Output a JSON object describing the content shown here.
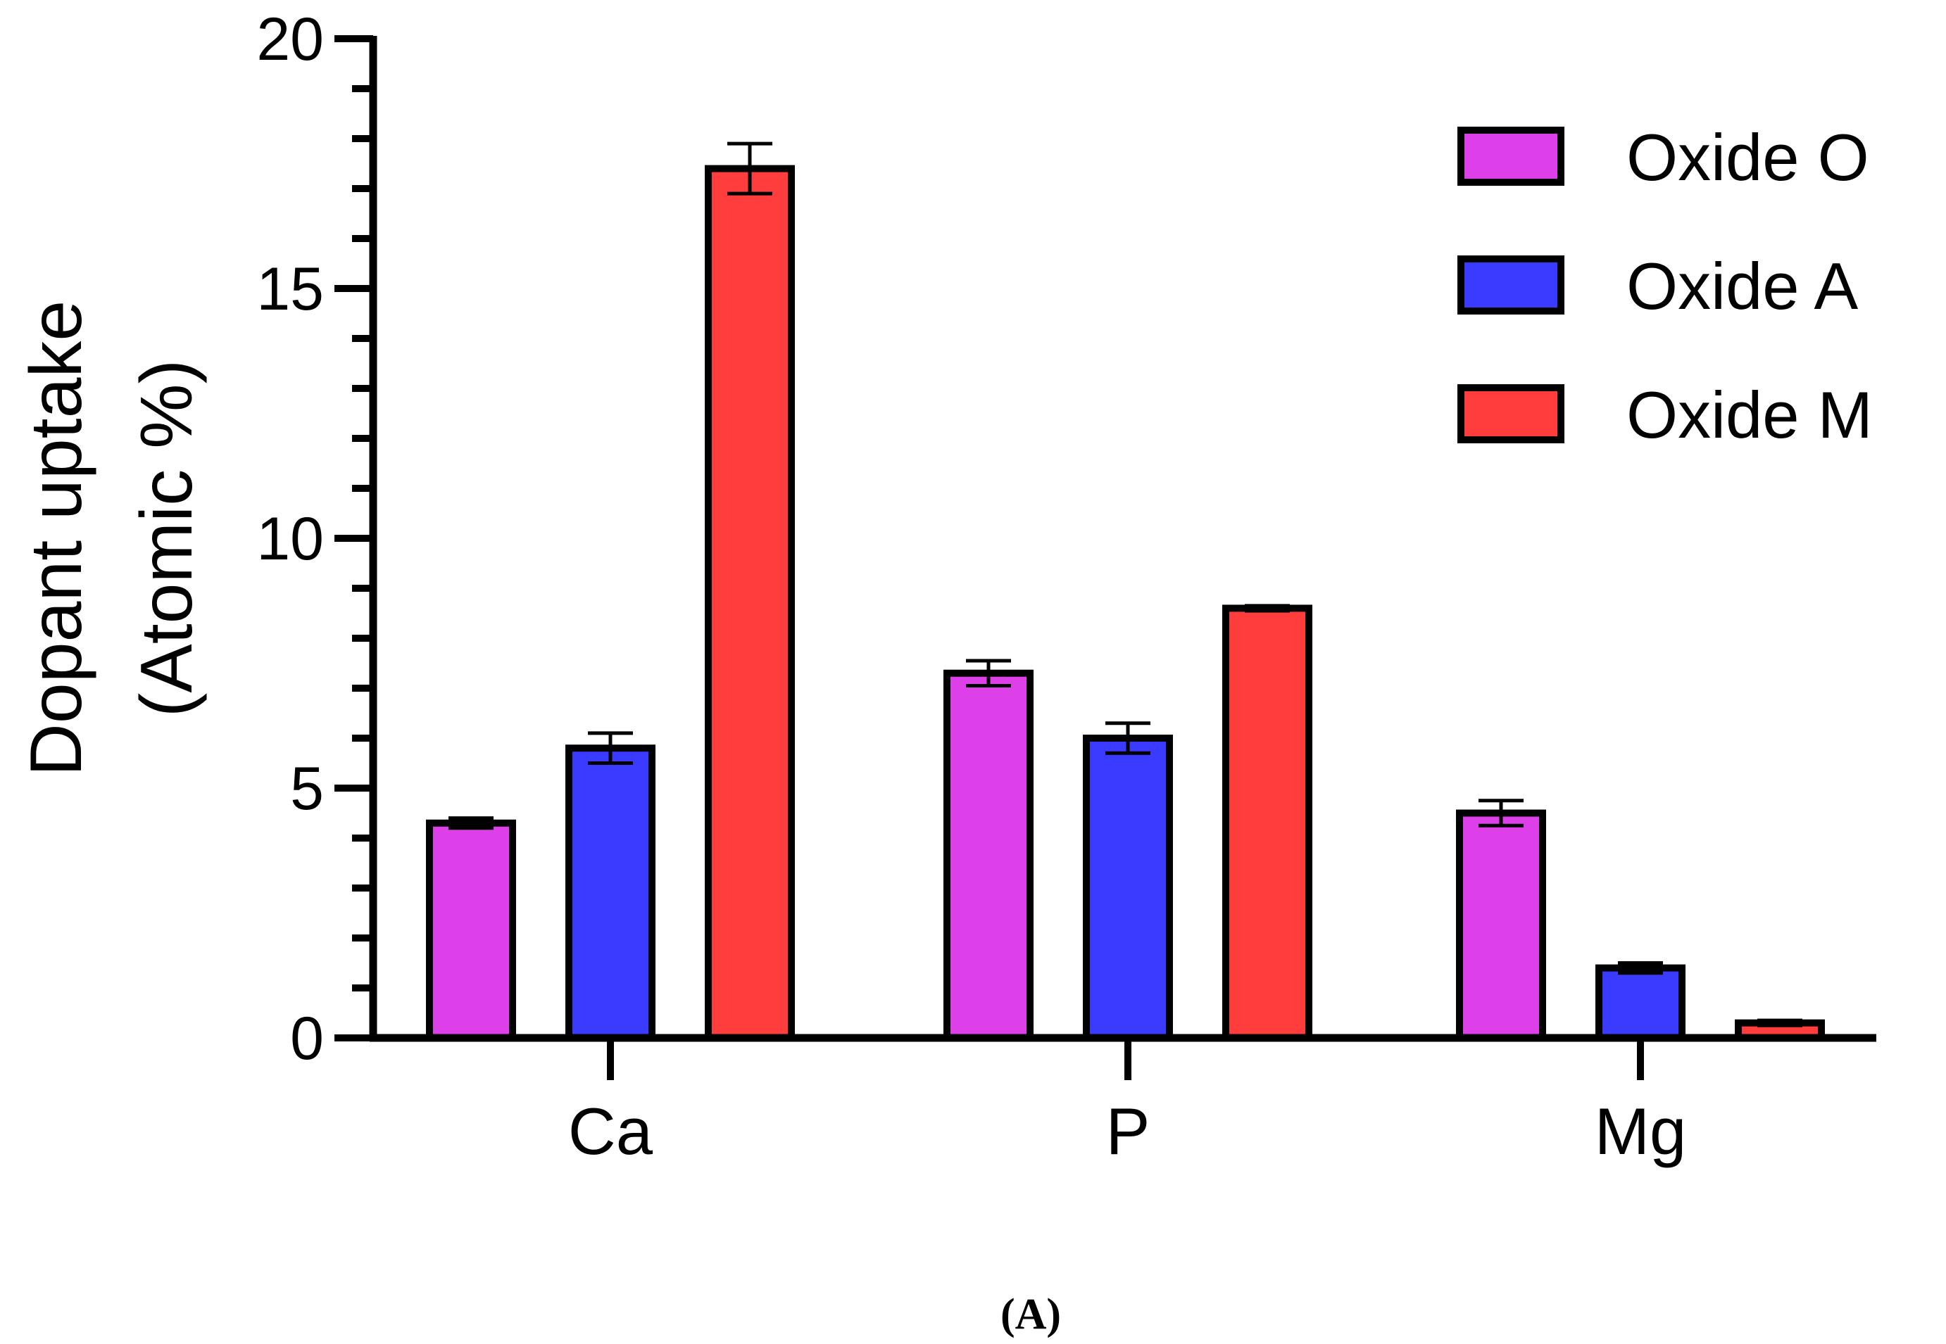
{
  "chart_data": {
    "type": "bar",
    "ylabel_line1": "Dopant uptake",
    "ylabel_line2": "(Atomic %)",
    "ylim": [
      0,
      20
    ],
    "yticks": [
      "0",
      "5",
      "10",
      "15",
      "20"
    ],
    "categories": [
      "Ca",
      "P",
      "Mg"
    ],
    "series": [
      {
        "name": "Oxide O",
        "color": "#dd3fe9",
        "values": [
          4.3,
          7.3,
          4.5
        ],
        "errors": [
          0.1,
          0.25,
          0.25
        ]
      },
      {
        "name": "Oxide A",
        "color": "#3b3bff",
        "values": [
          5.8,
          6.0,
          1.4
        ],
        "errors": [
          0.3,
          0.3,
          0.1
        ]
      },
      {
        "name": "Oxide M",
        "color": "#ff3d3d",
        "values": [
          17.4,
          8.6,
          0.3
        ],
        "errors": [
          0.5,
          0.05,
          0.05
        ]
      }
    ],
    "legend_position": "top-right",
    "grid": false
  },
  "panel_label": "(A)"
}
